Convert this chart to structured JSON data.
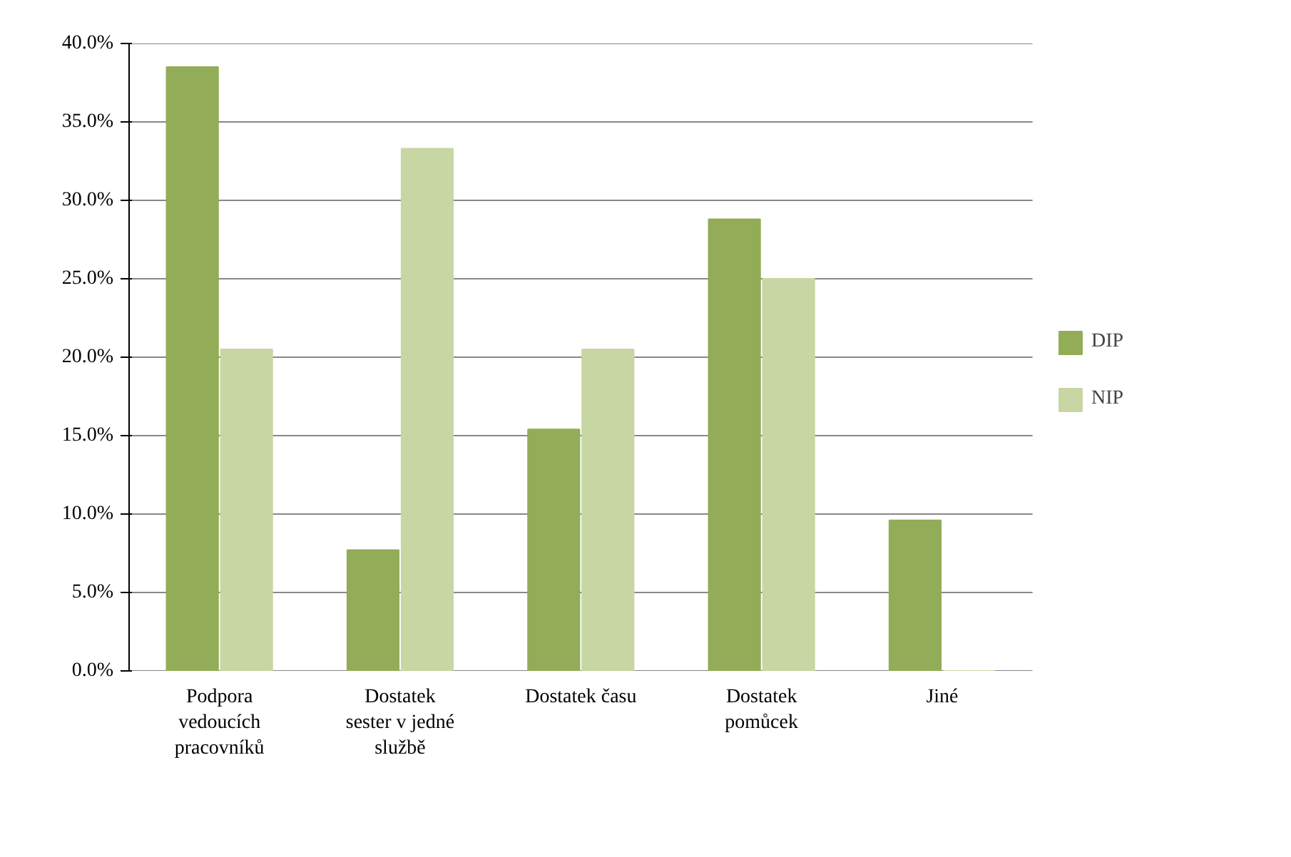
{
  "chart_data": {
    "type": "bar",
    "categories": [
      "Podpora vedoucích pracovníků",
      "Dostatek sester v jedné službě",
      "Dostatek času",
      "Dostatek pomůcek",
      "Jiné"
    ],
    "series": [
      {
        "name": "DIP",
        "color": "#93ac58",
        "values": [
          38.5,
          7.7,
          15.4,
          28.8,
          9.6
        ]
      },
      {
        "name": "NIP",
        "color": "#c8d6a3",
        "values": [
          20.5,
          33.3,
          20.5,
          25.0,
          0
        ]
      }
    ],
    "ylim": [
      0,
      40
    ],
    "yticks": [
      {
        "value": 0,
        "label": "0.0%"
      },
      {
        "value": 5,
        "label": "5.0%"
      },
      {
        "value": 10,
        "label": "10.0%"
      },
      {
        "value": 15,
        "label": "15.0%"
      },
      {
        "value": 20,
        "label": "20.0%"
      },
      {
        "value": 25,
        "label": "25.0%"
      },
      {
        "value": 30,
        "label": "30.0%"
      },
      {
        "value": 35,
        "label": "35.0%"
      },
      {
        "value": 40,
        "label": "40.0%"
      }
    ],
    "grid": "y",
    "legend": "right"
  }
}
